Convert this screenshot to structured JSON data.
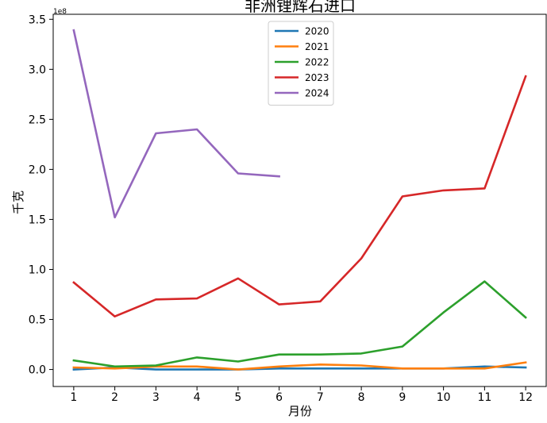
{
  "chart_data": {
    "type": "line",
    "title": "非洲锂辉石进口",
    "xlabel": "月份",
    "ylabel": "千克",
    "y_offset_label": "1e8",
    "categories": [
      1,
      2,
      3,
      4,
      5,
      6,
      7,
      8,
      9,
      10,
      11,
      12
    ],
    "x_ticks": [
      "1",
      "2",
      "3",
      "4",
      "5",
      "6",
      "7",
      "8",
      "9",
      "10",
      "11",
      "12"
    ],
    "y_ticks": [
      "0.0",
      "0.5",
      "1.0",
      "1.5",
      "2.0",
      "2.5",
      "3.0",
      "3.5"
    ],
    "y_tick_values": [
      0,
      0.5,
      1.0,
      1.5,
      2.0,
      2.5,
      3.0,
      3.5
    ],
    "xlim": [
      0.5,
      12.5
    ],
    "ylim": [
      -0.17,
      3.55
    ],
    "y_units": "1e8 kg",
    "grid": false,
    "legend_position": "top-center",
    "series": [
      {
        "name": "2020",
        "color": "#1f77b4",
        "values": [
          0.0,
          0.02,
          0.0,
          0.0,
          0.0,
          0.01,
          0.01,
          0.01,
          0.01,
          0.01,
          0.03,
          0.02
        ]
      },
      {
        "name": "2021",
        "color": "#ff7f0e",
        "values": [
          0.02,
          0.01,
          0.03,
          0.03,
          0.0,
          0.03,
          0.05,
          0.04,
          0.01,
          0.01,
          0.01,
          0.07
        ]
      },
      {
        "name": "2022",
        "color": "#2ca02c",
        "values": [
          0.09,
          0.03,
          0.04,
          0.12,
          0.08,
          0.15,
          0.15,
          0.16,
          0.23,
          0.57,
          0.88,
          0.52
        ]
      },
      {
        "name": "2023",
        "color": "#d62728",
        "values": [
          0.87,
          0.53,
          0.7,
          0.71,
          0.91,
          0.65,
          0.68,
          1.11,
          1.73,
          1.79,
          1.81,
          2.93
        ]
      },
      {
        "name": "2024",
        "color": "#9467bd",
        "values": [
          3.39,
          1.52,
          2.36,
          2.4,
          1.96,
          1.93,
          null,
          null,
          null,
          null,
          null,
          null
        ]
      }
    ]
  }
}
